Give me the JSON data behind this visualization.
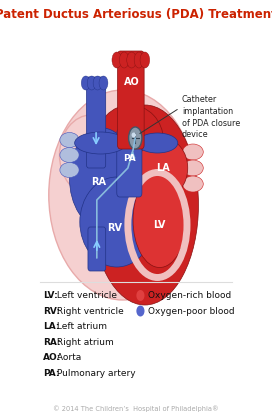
{
  "title": "Patent Ductus Arteriosus (PDA) Treatment",
  "title_color": "#cc2200",
  "title_fontsize": 8.5,
  "bg_color": "#ffffff",
  "legend_items": [
    "LV: Left ventricle",
    "RV: Right ventricle",
    "LA: Left atrium",
    "RA: Right atrium",
    "AO: Aorta",
    "PA: Pulmonary artery"
  ],
  "legend_blood": [
    {
      "label": "Oxygen-rich blood",
      "color": "#e04040"
    },
    {
      "label": "Oxygen-poor blood",
      "color": "#5566cc"
    }
  ],
  "annotation_text": "Catheter\nimplantation\nof PDA closure\ndevice",
  "copyright": "© 2014 The Children’s  Hospital of Philadelphia®",
  "red": "#cc2222",
  "red2": "#dd3333",
  "blue": "#3344aa",
  "blue2": "#4455bb",
  "lred": "#f0c0c0",
  "lblue": "#b0bedd",
  "dred": "#881111",
  "dblue": "#223388",
  "pink_bg": "#f5d0d0",
  "device_gray": "#8899aa",
  "catheter_blue": "#88bbdd"
}
